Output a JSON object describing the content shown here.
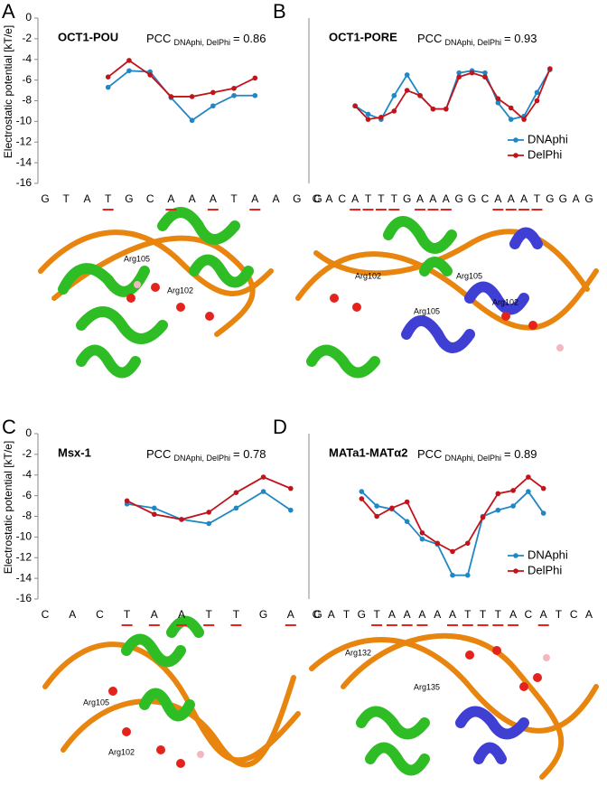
{
  "chart_data": [
    {
      "type": "line",
      "panel": "A",
      "title": "OCT1-POU",
      "annotation": {
        "text": "PCC",
        "subscript": "DNAphi, DelPhi",
        "value": "= 0.86"
      },
      "y_label": "Electrostatic potential [kT/e]",
      "categories": [
        "G",
        "T",
        "A",
        "T",
        "G",
        "C",
        "A",
        "A",
        "A",
        "T",
        "A",
        "A",
        "G",
        "G"
      ],
      "underlined": [
        false,
        false,
        false,
        true,
        false,
        false,
        true,
        false,
        true,
        false,
        true,
        false,
        false,
        false
      ],
      "series": [
        {
          "name": "DNAphi",
          "color": "#1f87c3",
          "values": [
            null,
            null,
            null,
            -6.7,
            -5.1,
            -5.2,
            -7.7,
            -9.9,
            -8.5,
            -7.5,
            -7.5,
            null,
            null,
            null
          ]
        },
        {
          "name": "DelPhi",
          "color": "#c0141a",
          "values": [
            null,
            null,
            null,
            -5.7,
            -4.1,
            -5.5,
            -7.6,
            -7.6,
            -7.2,
            -6.8,
            -5.8,
            null,
            null,
            null
          ]
        }
      ],
      "ylim": [
        -16,
        0
      ],
      "yticks": [
        0,
        -2,
        -4,
        -6,
        -8,
        -10,
        -12,
        -14,
        -16
      ]
    },
    {
      "type": "line",
      "panel": "B",
      "title": "OCT1-PORE",
      "annotation": {
        "text": "PCC",
        "subscript": "DNAphi, DelPhi",
        "value": "= 0.93"
      },
      "categories": [
        "C",
        "A",
        "C",
        "A",
        "T",
        "T",
        "T",
        "G",
        "A",
        "A",
        "A",
        "G",
        "G",
        "C",
        "A",
        "A",
        "A",
        "T",
        "G",
        "G",
        "A",
        "G"
      ],
      "underlined": [
        false,
        false,
        false,
        true,
        true,
        true,
        true,
        false,
        true,
        true,
        true,
        false,
        false,
        false,
        true,
        true,
        true,
        true,
        false,
        false,
        false,
        false
      ],
      "series": [
        {
          "name": "DNAphi",
          "color": "#1f87c3",
          "values": [
            null,
            null,
            null,
            -8.5,
            -9.3,
            -9.8,
            -7.5,
            -5.5,
            -7.5,
            -8.8,
            -8.8,
            -5.3,
            -5.1,
            -5.3,
            -8.2,
            -9.8,
            -9.5,
            -7.2,
            -5.0,
            null,
            null,
            null
          ]
        },
        {
          "name": "DelPhi",
          "color": "#c0141a",
          "values": [
            null,
            null,
            null,
            -8.5,
            -9.8,
            -9.6,
            -9.0,
            -7.0,
            -7.5,
            -8.8,
            -8.8,
            -5.7,
            -5.3,
            -5.7,
            -7.8,
            -8.7,
            -9.8,
            -8.0,
            -4.9,
            null,
            null,
            null
          ]
        }
      ],
      "ylim": [
        -16,
        0
      ],
      "legend": "right"
    },
    {
      "type": "line",
      "panel": "C",
      "title": "Msx-1",
      "annotation": {
        "text": "PCC",
        "subscript": "DNAphi, DelPhi",
        "value": "= 0.78"
      },
      "y_label": "Electrostatic potential [kT/e]",
      "categories": [
        "C",
        "A",
        "C",
        "T",
        "A",
        "A",
        "T",
        "T",
        "G",
        "A",
        "G"
      ],
      "underlined": [
        false,
        false,
        false,
        true,
        true,
        true,
        true,
        true,
        false,
        true,
        false
      ],
      "series": [
        {
          "name": "DNAphi",
          "color": "#1f87c3",
          "values": [
            null,
            null,
            null,
            -6.8,
            -7.2,
            -8.3,
            -8.7,
            -7.2,
            -5.6,
            -7.4,
            null
          ]
        },
        {
          "name": "DelPhi",
          "color": "#c0141a",
          "values": [
            null,
            null,
            null,
            -6.5,
            -7.8,
            -8.3,
            -7.6,
            -5.7,
            -4.2,
            -5.3,
            null
          ]
        }
      ],
      "ylim": [
        -16,
        0
      ],
      "yticks": [
        0,
        -2,
        -4,
        -6,
        -8,
        -10,
        -12,
        -14,
        -16
      ]
    },
    {
      "type": "line",
      "panel": "D",
      "title": "MATa1-MATα2",
      "annotation": {
        "text": "PCC",
        "subscript": "DNAphi, DelPhi",
        "value": "= 0.89"
      },
      "categories": [
        "C",
        "A",
        "T",
        "G",
        "T",
        "A",
        "A",
        "A",
        "A",
        "A",
        "T",
        "T",
        "T",
        "A",
        "C",
        "A",
        "T",
        "C",
        "A"
      ],
      "underlined": [
        false,
        false,
        false,
        false,
        true,
        true,
        true,
        true,
        false,
        true,
        true,
        true,
        true,
        true,
        false,
        true,
        false,
        false,
        false
      ],
      "series": [
        {
          "name": "DNAphi",
          "color": "#1f87c3",
          "values": [
            null,
            null,
            null,
            -5.6,
            -7.0,
            -7.3,
            -8.5,
            -10.2,
            -10.7,
            -13.7,
            -13.7,
            -8.0,
            -7.4,
            -7.0,
            -5.6,
            -7.7,
            null,
            null,
            null
          ]
        },
        {
          "name": "DelPhi",
          "color": "#c0141a",
          "values": [
            null,
            null,
            null,
            -6.3,
            -8.0,
            -7.2,
            -6.6,
            -9.6,
            -10.6,
            -11.4,
            -10.6,
            -8.1,
            -5.8,
            -5.5,
            -4.2,
            -5.3,
            null,
            null,
            null
          ]
        }
      ],
      "ylim": [
        -16,
        0
      ],
      "legend": "right"
    }
  ],
  "structures": [
    {
      "labels": [
        "Arg105",
        "Arg102"
      ]
    },
    {
      "labels": [
        "Arg102",
        "Arg105",
        "Arg105",
        "Arg102"
      ]
    },
    {
      "labels": [
        "Arg105",
        "Arg102"
      ]
    },
    {
      "labels": [
        "Arg132",
        "Arg135"
      ]
    }
  ]
}
